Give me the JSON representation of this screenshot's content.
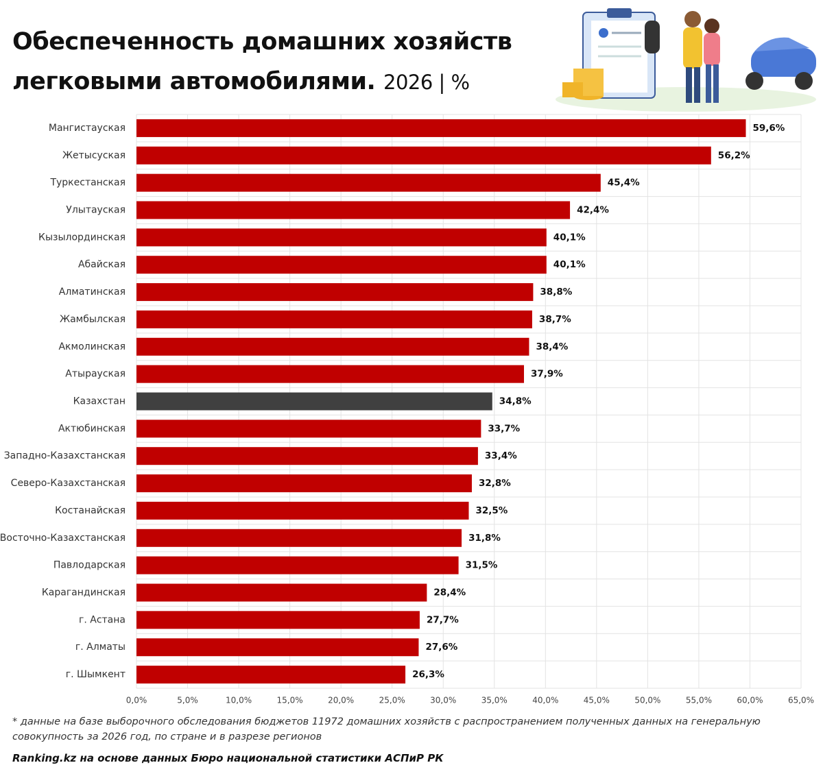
{
  "chart_data": {
    "type": "bar",
    "orientation": "horizontal",
    "title": "Обеспеченность домашних хозяйств легковыми автомобилями.",
    "subtitle": "2026 | %",
    "categories": [
      "Мангистауская",
      "Жетысуская",
      "Туркестанская",
      "Улытауская",
      "Кызылординская",
      "Абайская",
      "Алматинская",
      "Жамбылская",
      "Акмолинская",
      "Атырауская",
      "Казахстан",
      "Актюбинская",
      "Западно-Казахстанская",
      "Северо-Казахстанская",
      "Костанайская",
      "Восточно-Казахстанская",
      "Павлодарская",
      "Карагандинская",
      "г. Астана",
      "г. Алматы",
      "г. Шымкент"
    ],
    "values": [
      59.6,
      56.2,
      45.4,
      42.4,
      40.1,
      40.1,
      38.8,
      38.7,
      38.4,
      37.9,
      34.8,
      33.7,
      33.4,
      32.8,
      32.5,
      31.8,
      31.5,
      28.4,
      27.7,
      27.6,
      26.3
    ],
    "value_labels": [
      "59,6%",
      "56,2%",
      "45,4%",
      "42,4%",
      "40,1%",
      "40,1%",
      "38,8%",
      "38,7%",
      "38,4%",
      "37,9%",
      "34,8%",
      "33,7%",
      "33,4%",
      "32,8%",
      "32,5%",
      "31,8%",
      "31,5%",
      "28,4%",
      "27,7%",
      "27,6%",
      "26,3%"
    ],
    "colors": [
      "#c00000",
      "#c00000",
      "#c00000",
      "#c00000",
      "#c00000",
      "#c00000",
      "#c00000",
      "#c00000",
      "#c00000",
      "#c00000",
      "#404040",
      "#c00000",
      "#c00000",
      "#c00000",
      "#c00000",
      "#c00000",
      "#c00000",
      "#c00000",
      "#c00000",
      "#c00000",
      "#c00000"
    ],
    "xlim": [
      0,
      65
    ],
    "xticks": [
      {
        "value": 0,
        "label": "0,0%"
      },
      {
        "value": 5,
        "label": "5,0%"
      },
      {
        "value": 10,
        "label": "10,0%"
      },
      {
        "value": 15,
        "label": "15,0%"
      },
      {
        "value": 20,
        "label": "20,0%"
      },
      {
        "value": 25,
        "label": "25,0%"
      },
      {
        "value": 30,
        "label": "30,0%"
      },
      {
        "value": 35,
        "label": "35,0%"
      },
      {
        "value": 40,
        "label": "40,0%"
      },
      {
        "value": 45,
        "label": "45,0%"
      },
      {
        "value": 50,
        "label": "50,0%"
      },
      {
        "value": 55,
        "label": "55,0%"
      },
      {
        "value": 60,
        "label": "60,0%"
      },
      {
        "value": 65,
        "label": "65,0%"
      }
    ],
    "grid": true,
    "footnote": "* данные на базе выборочного обследования бюджетов 11972 домашних хозяйств с распространением полученных данных на генеральную совокупность за 2026 год, по стране и в разрезе регионов",
    "source": "Ranking.kz на основе данных Бюро национальной статистики АСПиР РК"
  }
}
